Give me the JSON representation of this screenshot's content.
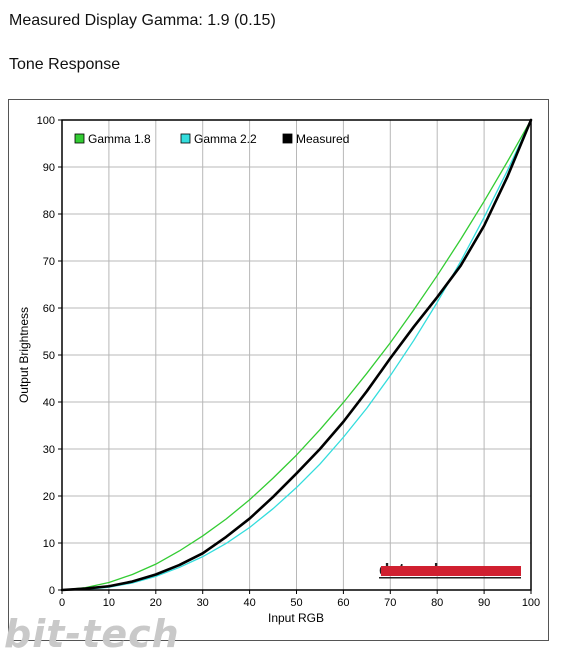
{
  "page": {
    "title": "Measured Display Gamma: 1.9 (0.15)",
    "subtitle": "Tone Response"
  },
  "watermark": "bit-tech",
  "logo": {
    "text": "datacolor",
    "bar_color": "#d02030"
  },
  "chart_data": {
    "type": "line",
    "xlabel": "Input RGB",
    "ylabel": "Output Brightness",
    "xlim": [
      0,
      100
    ],
    "ylim": [
      0,
      100
    ],
    "xticks": [
      0,
      10,
      20,
      30,
      40,
      50,
      60,
      70,
      80,
      90,
      100
    ],
    "yticks": [
      0,
      10,
      20,
      30,
      40,
      50,
      60,
      70,
      80,
      90,
      100
    ],
    "grid": true,
    "legend_position": "top-left",
    "series": [
      {
        "name": "Gamma 1.8",
        "color": "#33cc33",
        "x": [
          0,
          5,
          10,
          15,
          20,
          25,
          30,
          35,
          40,
          45,
          50,
          55,
          60,
          65,
          70,
          75,
          80,
          85,
          90,
          95,
          100
        ],
        "y": [
          0,
          0.5,
          1.6,
          3.3,
          5.5,
          8.3,
          11.5,
          15.1,
          19.2,
          23.8,
          28.7,
          34.1,
          39.9,
          46.1,
          52.6,
          59.6,
          66.9,
          74.6,
          82.7,
          91.2,
          100
        ]
      },
      {
        "name": "Gamma 2.2",
        "color": "#33dddd",
        "x": [
          0,
          5,
          10,
          15,
          20,
          25,
          30,
          35,
          40,
          45,
          50,
          55,
          60,
          65,
          70,
          75,
          80,
          85,
          90,
          95,
          100
        ],
        "y": [
          0,
          0.1,
          0.6,
          1.5,
          2.9,
          4.8,
          7.1,
          9.9,
          13.3,
          17.3,
          21.8,
          26.8,
          32.5,
          38.7,
          45.6,
          53.1,
          61.2,
          69.9,
          79.3,
          89.3,
          100
        ]
      },
      {
        "name": "Measured",
        "color": "#000000",
        "x": [
          0,
          5,
          10,
          15,
          20,
          25,
          30,
          35,
          40,
          45,
          50,
          55,
          60,
          65,
          70,
          75,
          80,
          85,
          90,
          95,
          100
        ],
        "y": [
          0,
          0.3,
          0.8,
          1.8,
          3.3,
          5.3,
          7.8,
          11.3,
          15.2,
          19.8,
          24.8,
          30.0,
          35.8,
          42.3,
          49.3,
          56.0,
          62.3,
          69.0,
          77.5,
          88.0,
          100
        ]
      }
    ]
  }
}
